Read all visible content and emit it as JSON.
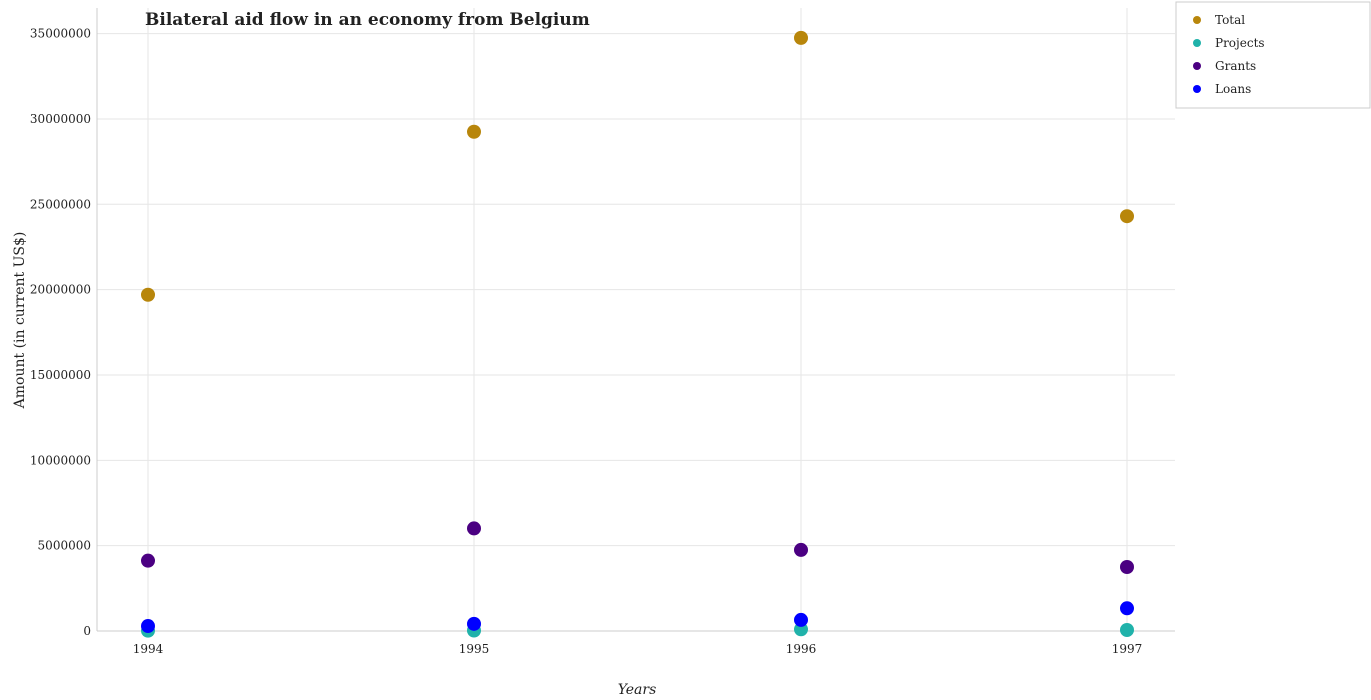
{
  "chart_data": {
    "type": "scatter",
    "title": "Bilateral aid flow in an economy from Belgium",
    "xlabel": "Years",
    "ylabel": "Amount (in current US$)",
    "categories": [
      "1994",
      "1995",
      "1996",
      "1997"
    ],
    "ylim": [
      0,
      36500000
    ],
    "yticks": [
      0,
      5000000,
      10000000,
      15000000,
      20000000,
      25000000,
      30000000,
      35000000
    ],
    "ytick_labels": [
      "0",
      "5000000",
      "10000000",
      "15000000",
      "20000000",
      "25000000",
      "30000000",
      "35000000"
    ],
    "grid": true,
    "legend_position": "top-right",
    "series": [
      {
        "name": "Total",
        "color": "#b8860b",
        "values": [
          19700000,
          29250000,
          34750000,
          24300000
        ]
      },
      {
        "name": "Projects",
        "color": "#20b2aa",
        "values": [
          20000,
          30000,
          100000,
          60000
        ]
      },
      {
        "name": "Grants",
        "color": "#4b0082",
        "values": [
          4120000,
          6010000,
          4750000,
          3750000
        ]
      },
      {
        "name": "Loans",
        "color": "#0000ff",
        "values": [
          290000,
          420000,
          650000,
          1330000
        ]
      }
    ]
  }
}
